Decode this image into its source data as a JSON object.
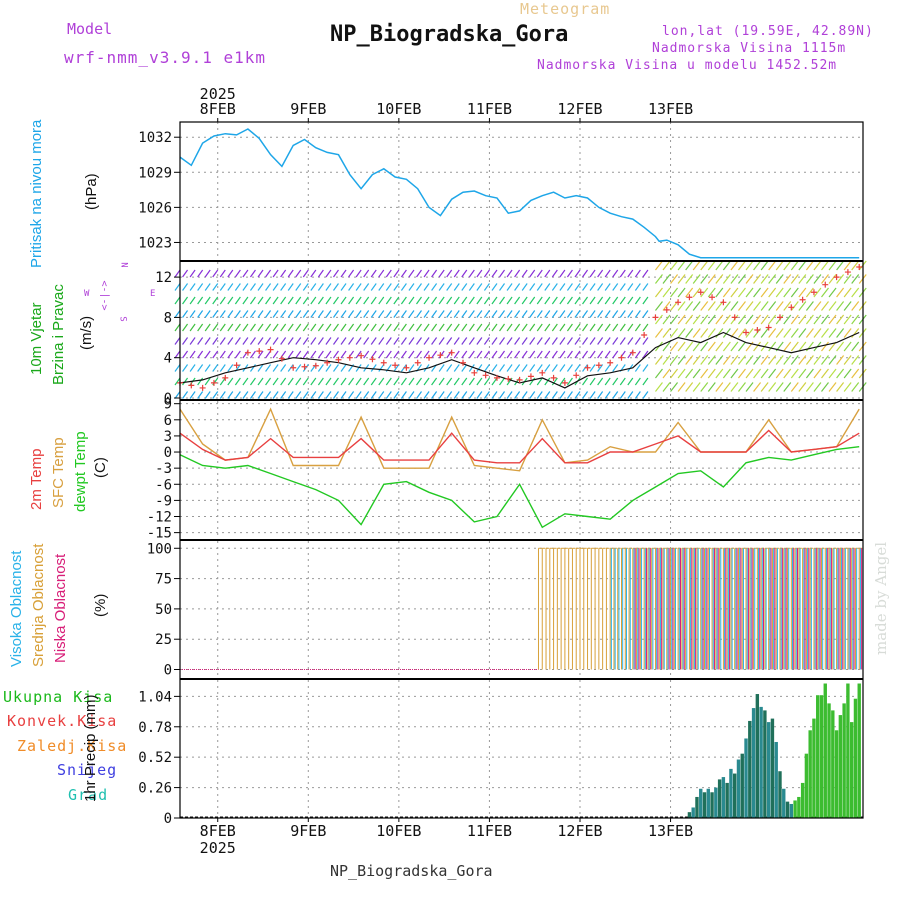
{
  "header": {
    "model_label": "Model",
    "model_name": "wrf-nmm_v3.9.1 e1km",
    "meteogram_label": "Meteogram",
    "station_title": "NP_Biogradska_Gora",
    "lonlat": "lon,lat (19.59E, 42.89N)",
    "elevation": "Nadmorska Visina 1115m",
    "model_elevation": "Nadmorska Visina u modelu 1452.52m",
    "footer_station": "NP_Biogradska_Gora",
    "credit": "made by Angel"
  },
  "colors": {
    "pressure": "#1ea6e8",
    "wind_label": "#1aa81a",
    "wind_speed": "#111111",
    "gust": "#e8403c",
    "temp2m": "#e84040",
    "sfc_temp": "#d8a040",
    "dewpoint": "#22c822",
    "high_cloud": "#2ab2e8",
    "mid_cloud": "#d8a038",
    "low_cloud": "#d81e78",
    "total_precip": "#1ab81a",
    "conv_precip": "#e84040",
    "frozen_precip": "#f08c28",
    "snow": "#4040e0",
    "hail": "#20c0b0",
    "direction_legend": "#b040d8"
  },
  "time_axis": {
    "top_year": "2025",
    "bottom_year": "2025",
    "day_labels": [
      "8FEB",
      "9FEB",
      "10FEB",
      "11FEB",
      "12FEB",
      "13FEB"
    ]
  },
  "chart_data": [
    {
      "type": "line",
      "panel": "pressure",
      "title_label": "Pritisak na nivou mora",
      "ylabel": "(hPa)",
      "ylim": [
        1021.5,
        1033.3
      ],
      "yticks": [
        "1023",
        "1026",
        "1029",
        "1032"
      ],
      "grid": true,
      "series": [
        {
          "name": "Pritisak na nivou mora",
          "x": [
            0,
            3,
            6,
            9,
            12,
            15,
            18,
            21,
            24,
            27,
            30,
            33,
            36,
            39,
            42,
            45,
            48,
            51,
            54,
            57,
            60,
            63,
            66,
            69,
            72,
            75,
            78,
            81,
            84,
            87,
            90,
            93,
            96,
            99,
            102,
            105,
            108,
            111,
            114,
            117,
            120,
            123,
            126,
            127,
            129,
            132,
            135,
            138,
            141,
            144,
            147,
            150,
            153,
            156,
            159,
            162,
            165,
            168,
            171,
            174,
            177,
            180
          ],
          "values": [
            1030.3,
            1029.6,
            1031.5,
            1032.1,
            1032.3,
            1032.2,
            1032.7,
            1031.9,
            1030.5,
            1029.5,
            1031.3,
            1031.8,
            1031.1,
            1030.7,
            1030.5,
            1028.8,
            1027.6,
            1028.8,
            1029.3,
            1028.6,
            1028.4,
            1027.6,
            1026.0,
            1025.3,
            1026.7,
            1027.3,
            1027.4,
            1027.0,
            1026.8,
            1025.5,
            1025.7,
            1026.6,
            1027.0,
            1027.3,
            1026.8,
            1027.0,
            1026.8,
            1026.0,
            1025.5,
            1025.2,
            1025.0,
            1024.3,
            1023.5,
            1023.1,
            1023.2,
            1022.8,
            1022.0,
            1021.7,
            1021.7,
            1021.7,
            1021.7,
            1021.7,
            1021.7,
            1021.7,
            1021.7,
            1021.7,
            1021.7,
            1021.7,
            1021.7,
            1021.7,
            1021.7,
            1021.7
          ]
        }
      ]
    },
    {
      "type": "line",
      "panel": "wind",
      "title_label": "10m Vjetar",
      "title_label2": "Brzina i Pravac",
      "ylabel": "(m/s)",
      "ylim": [
        0,
        13.5
      ],
      "yticks": [
        "0",
        "4",
        "8",
        "12"
      ],
      "grid": true,
      "direction_legend": [
        "N",
        "E",
        "S",
        "W"
      ],
      "direction_symbol": "<-|->",
      "series": [
        {
          "name": "wind speed",
          "x": [
            0,
            6,
            12,
            18,
            24,
            30,
            36,
            42,
            48,
            54,
            60,
            66,
            72,
            78,
            84,
            90,
            96,
            102,
            108,
            114,
            120,
            126,
            132,
            138,
            144,
            150,
            156,
            162,
            168,
            174,
            180
          ],
          "values": [
            1.5,
            1.8,
            2.5,
            3.0,
            3.5,
            4.0,
            3.8,
            3.5,
            3.0,
            2.8,
            2.5,
            3.0,
            3.8,
            3.0,
            2.2,
            1.5,
            2.0,
            1.0,
            2.2,
            2.5,
            3.0,
            5.0,
            6.0,
            5.5,
            6.5,
            5.5,
            5.0,
            4.5,
            5.0,
            5.5,
            6.5
          ]
        },
        {
          "name": "gust",
          "x": [
            0,
            6,
            12,
            18,
            24,
            30,
            36,
            42,
            48,
            54,
            60,
            66,
            72,
            78,
            84,
            90,
            96,
            102,
            108,
            114,
            120,
            126,
            132,
            138,
            144,
            150,
            156,
            162,
            168,
            174,
            180
          ],
          "values": [
            1.5,
            1.0,
            2.0,
            4.5,
            4.8,
            3.0,
            3.2,
            3.8,
            4.2,
            3.5,
            3.0,
            4.0,
            4.5,
            2.5,
            2.0,
            1.8,
            2.5,
            1.5,
            3.0,
            3.5,
            4.5,
            8.0,
            9.5,
            10.5,
            9.5,
            6.5,
            7.0,
            9.0,
            10.5,
            12.0,
            13.0
          ]
        }
      ]
    },
    {
      "type": "line",
      "panel": "temperature",
      "title_label": "2m Temp",
      "title_label2": "SFC Temp",
      "title_label3": "dewpt Temp",
      "ylabel": "(C)",
      "ylim": [
        -16,
        9.5
      ],
      "yticks": [
        "-15",
        "-12",
        "-9",
        "-6",
        "-3",
        "0",
        "3",
        "6",
        "9"
      ],
      "grid": true,
      "series": [
        {
          "name": "2m Temp",
          "x": [
            0,
            6,
            12,
            18,
            24,
            30,
            36,
            42,
            48,
            54,
            60,
            66,
            72,
            78,
            84,
            90,
            96,
            102,
            108,
            114,
            120,
            126,
            132,
            138,
            144,
            150,
            156,
            162,
            168,
            174,
            180
          ],
          "values": [
            3.5,
            0.5,
            -1.5,
            -1.0,
            2.5,
            -1.0,
            -1.0,
            -1.0,
            2.5,
            -1.5,
            -1.5,
            -1.5,
            3.5,
            -1.5,
            -2.0,
            -2.0,
            2.5,
            -2.0,
            -2.0,
            0.0,
            0.0,
            1.5,
            3.0,
            0.0,
            0.0,
            0.0,
            4.0,
            0.0,
            0.5,
            1.0,
            3.5
          ]
        },
        {
          "name": "SFC Temp",
          "x": [
            0,
            6,
            12,
            18,
            24,
            30,
            36,
            42,
            48,
            54,
            60,
            66,
            72,
            78,
            84,
            90,
            96,
            102,
            108,
            114,
            120,
            126,
            132,
            138,
            144,
            150,
            156,
            162,
            168,
            174,
            180
          ],
          "values": [
            8.0,
            1.5,
            -1.5,
            -1.0,
            8.0,
            -2.5,
            -2.5,
            -2.5,
            6.5,
            -3.0,
            -3.0,
            -3.0,
            6.5,
            -2.5,
            -3.0,
            -3.5,
            6.0,
            -2.0,
            -1.5,
            1.0,
            0.0,
            0.0,
            5.5,
            0.0,
            0.0,
            0.0,
            6.0,
            0.0,
            0.5,
            1.0,
            8.0
          ]
        },
        {
          "name": "dewpt Temp",
          "x": [
            0,
            6,
            12,
            18,
            24,
            30,
            36,
            42,
            48,
            54,
            60,
            66,
            72,
            78,
            84,
            90,
            96,
            102,
            108,
            114,
            120,
            126,
            132,
            138,
            144,
            150,
            156,
            162,
            168,
            174,
            180
          ],
          "values": [
            -0.5,
            -2.5,
            -3.0,
            -2.5,
            -4.0,
            -5.5,
            -7.0,
            -9.0,
            -13.5,
            -6.0,
            -5.5,
            -7.5,
            -9.0,
            -13.0,
            -12.0,
            -6.0,
            -14.0,
            -11.5,
            -12.0,
            -12.5,
            -9.0,
            -6.5,
            -4.0,
            -3.5,
            -6.5,
            -2.0,
            -1.0,
            -1.5,
            -0.5,
            0.5,
            1.0
          ]
        }
      ]
    },
    {
      "type": "bar",
      "panel": "cloud",
      "title_label": "Visoka Oblacnost",
      "title_label2": "Srednja Oblacnost",
      "title_label3": "Niska Oblacnost",
      "ylabel": "(%)",
      "ylim": [
        -7,
        106
      ],
      "yticks": [
        "0",
        "25",
        "50",
        "75",
        "100"
      ],
      "grid": true,
      "cloud_start_hour": 95,
      "description_note": "",
      "series": [
        {
          "name": "Srednja Oblacnost",
          "start": 95,
          "value": 100
        },
        {
          "name": "Visoka Oblacnost",
          "start": 114,
          "value": 100
        },
        {
          "name": "Niska Oblacnost",
          "start": 120,
          "value": 100
        }
      ]
    },
    {
      "type": "bar",
      "panel": "precip",
      "legend": [
        "Ukupna Kisa",
        "Konvek.Kisa",
        "Zaledj.Kisa",
        "Snijeg",
        "Grad"
      ],
      "ylabel": "1hr Precip (mm)",
      "ylim": [
        0,
        1.18
      ],
      "yticks": [
        "0",
        "0.26",
        "0.52",
        "0.78",
        "1.04"
      ],
      "grid": true,
      "series": [
        {
          "name": "Ukupna Kisa",
          "x": [
            135,
            136,
            137,
            138,
            139,
            140,
            141,
            142,
            143,
            144,
            145,
            146,
            147,
            148,
            149,
            150,
            151,
            152,
            153,
            154,
            155,
            156,
            157,
            158,
            159,
            160,
            161,
            162,
            163,
            164,
            165,
            166,
            167,
            168,
            169,
            170,
            171,
            172,
            173,
            174,
            175,
            176,
            177,
            178,
            179,
            180
          ],
          "values": [
            0.05,
            0.09,
            0.18,
            0.25,
            0.22,
            0.25,
            0.22,
            0.26,
            0.33,
            0.35,
            0.3,
            0.42,
            0.38,
            0.5,
            0.55,
            0.68,
            0.83,
            0.94,
            1.06,
            0.95,
            0.92,
            0.82,
            0.85,
            0.65,
            0.4,
            0.25,
            0.14,
            0.12,
            0.15,
            0.18,
            0.3,
            0.55,
            0.75,
            0.85,
            1.05,
            1.05,
            1.15,
            0.98,
            0.92,
            0.75,
            0.88,
            0.98,
            1.15,
            0.82,
            1.02,
            1.15
          ]
        }
      ]
    }
  ]
}
